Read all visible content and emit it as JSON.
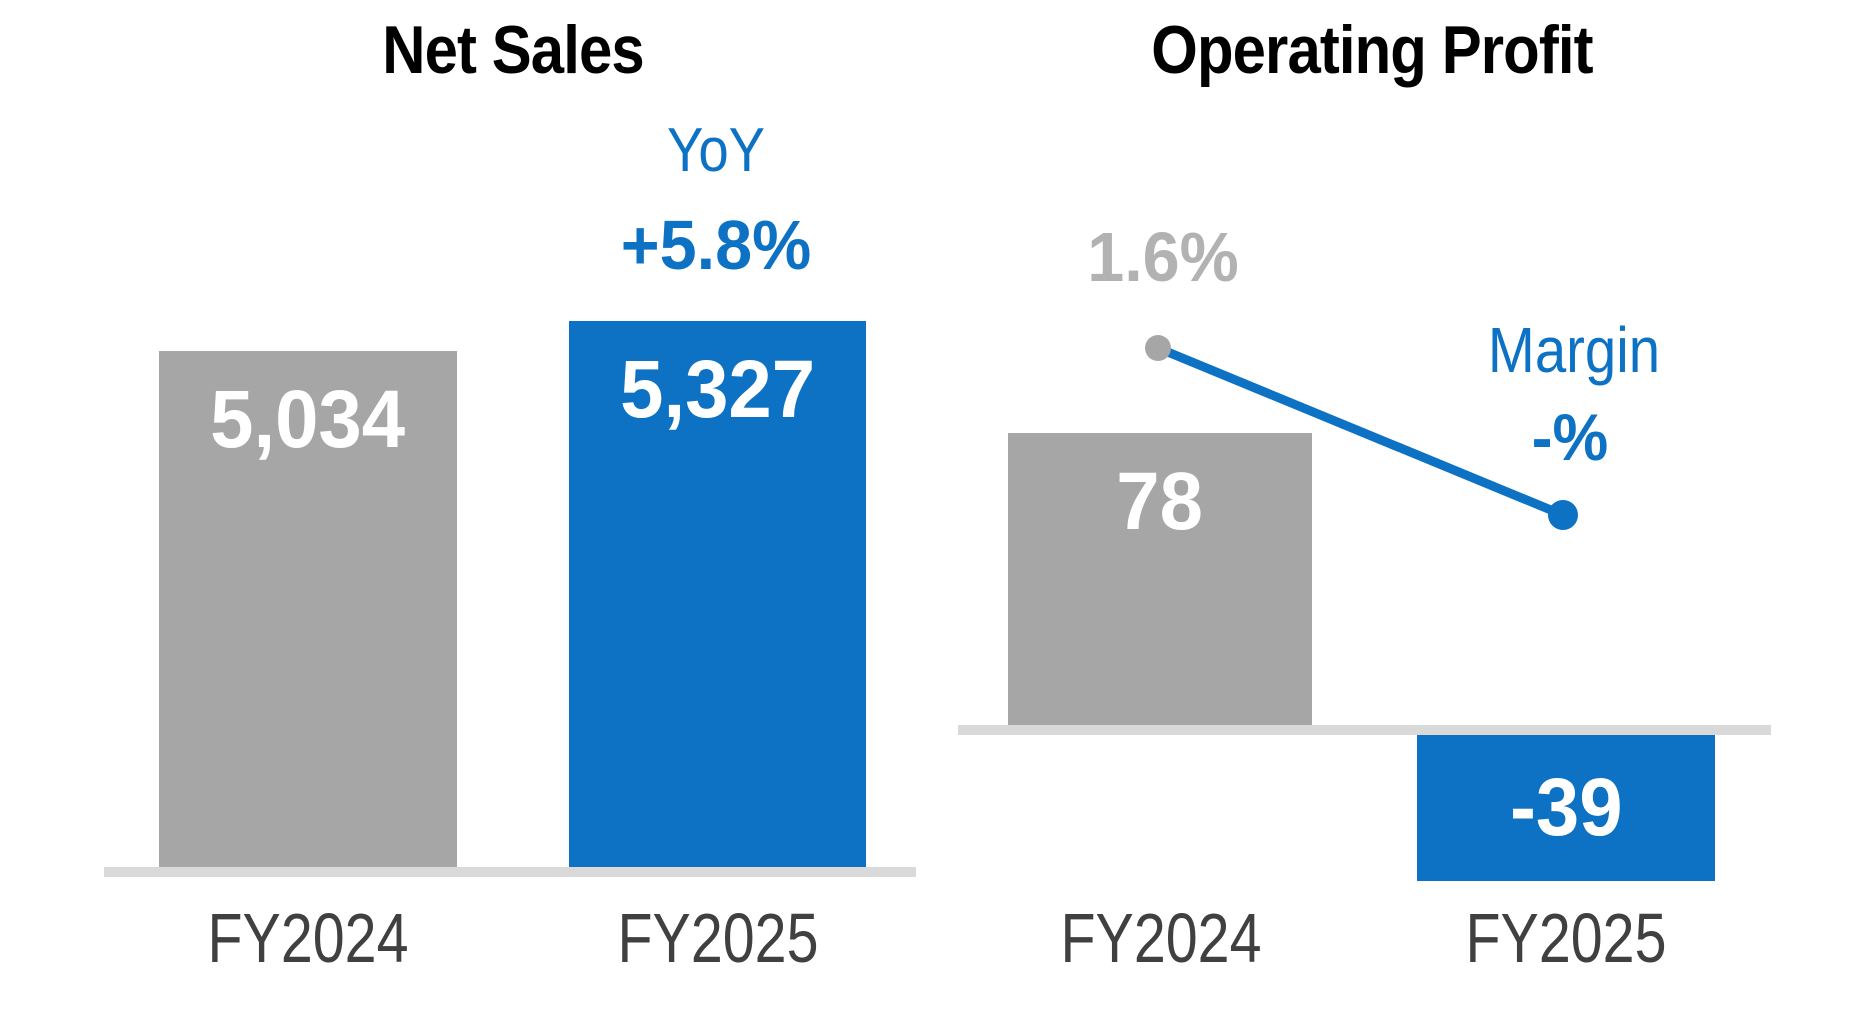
{
  "colors": {
    "accent_blue": "#0d72c4",
    "bar_gray": "#a6a6a6",
    "baseline_gray": "#d9d9d9",
    "axis_label_gray": "#404040",
    "muted_value_gray": "#b2b2b2",
    "title_black": "#000000",
    "value_white": "#ffffff"
  },
  "net_sales": {
    "title": "Net Sales",
    "yoy_label": "YoY",
    "yoy_value": "+5.8%",
    "bars": [
      {
        "category": "FY2024",
        "value_label": "5,034"
      },
      {
        "category": "FY2025",
        "value_label": "5,327"
      }
    ]
  },
  "operating_profit": {
    "title": "Operating Profit",
    "margin_label": "Margin",
    "margin_fy2024_value": "1.6%",
    "margin_fy2025_value": "-%",
    "bars": [
      {
        "category": "FY2024",
        "value_label": "78"
      },
      {
        "category": "FY2025",
        "value_label": "-39"
      }
    ]
  },
  "chart_data": [
    {
      "type": "bar",
      "title": "Net Sales",
      "categories": [
        "FY2024",
        "FY2025"
      ],
      "values": [
        5034,
        5327
      ],
      "value_labels": [
        "5,034",
        "5,327"
      ],
      "bar_colors": [
        "#a6a6a6",
        "#0d72c4"
      ],
      "annotation": "YoY +5.8%",
      "xlabel": "",
      "ylabel": "",
      "ylim": [
        0,
        5700
      ],
      "grid": false,
      "legend": false
    },
    {
      "type": "bar",
      "title": "Operating Profit",
      "categories": [
        "FY2024",
        "FY2025"
      ],
      "series": [
        {
          "name": "Operating Profit",
          "type": "bar",
          "values": [
            78,
            -39
          ],
          "value_labels": [
            "78",
            "-39"
          ],
          "colors": [
            "#a6a6a6",
            "#0d72c4"
          ]
        },
        {
          "name": "Margin",
          "type": "line",
          "values": [
            1.6,
            null
          ],
          "value_labels": [
            "1.6%",
            "-%"
          ],
          "unit": "%",
          "color": "#0d72c4"
        }
      ],
      "xlabel": "",
      "ylabel": "",
      "ylim": [
        -60,
        110
      ],
      "grid": false,
      "legend": false
    }
  ]
}
